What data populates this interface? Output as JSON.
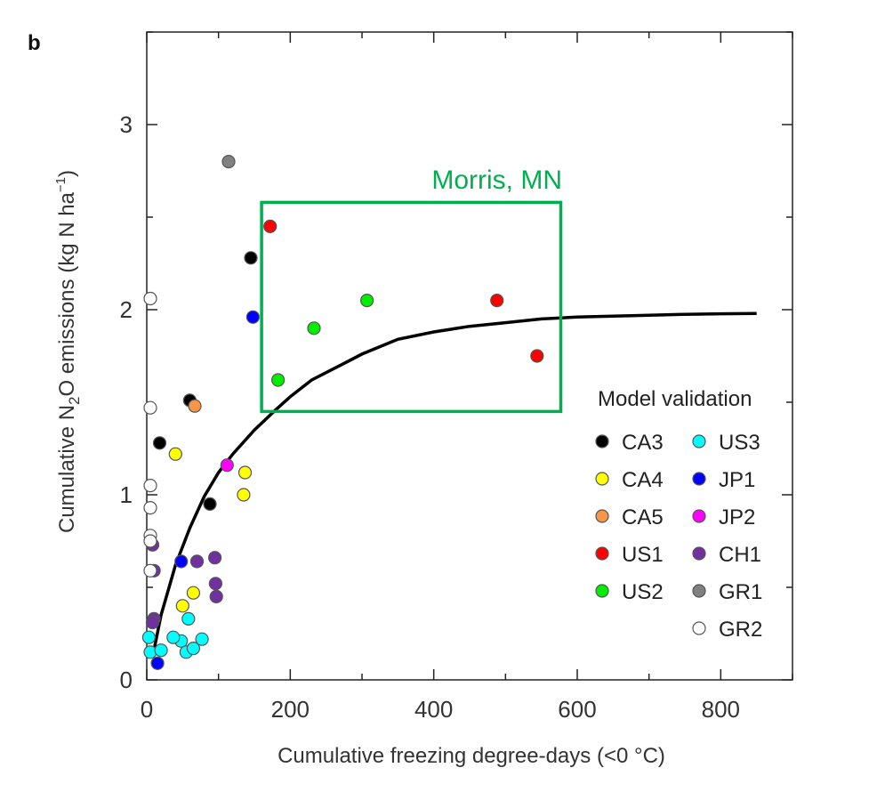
{
  "panel_label": "b",
  "chart_data": {
    "type": "scatter",
    "xlabel": "Cumulative freezing degree-days (<0 °C)",
    "ylabel": "Cumulative N2O emissions (kg N ha−1)",
    "xlim": [
      0,
      900
    ],
    "ylim": [
      0,
      3.5
    ],
    "x_ticks": [
      0,
      200,
      400,
      600,
      800
    ],
    "y_ticks": [
      0,
      1,
      2,
      3
    ],
    "x_tick_labels": [
      "0",
      "200",
      "400",
      "600",
      "800"
    ],
    "y_tick_labels": [
      "0",
      "1",
      "2",
      "3"
    ],
    "grid": false,
    "legend_title": "Model validation",
    "legend_position": "bottom-right",
    "series": [
      {
        "name": "CA3",
        "color": "#000000",
        "points": [
          [
            18,
            1.28
          ],
          [
            60,
            1.51
          ],
          [
            88,
            0.95
          ],
          [
            145,
            2.28
          ]
        ]
      },
      {
        "name": "CA4",
        "color": "#ffff00",
        "points": [
          [
            40,
            1.22
          ],
          [
            50,
            0.4
          ],
          [
            65,
            0.47
          ],
          [
            135,
            1.0
          ],
          [
            137,
            1.12
          ]
        ]
      },
      {
        "name": "CA5",
        "color": "#f79646",
        "points": [
          [
            67,
            1.48
          ]
        ]
      },
      {
        "name": "US1",
        "color": "#ff0000",
        "points": [
          [
            172,
            2.45
          ],
          [
            488,
            2.05
          ],
          [
            544,
            1.75
          ]
        ]
      },
      {
        "name": "US2",
        "color": "#00ee00",
        "points": [
          [
            183,
            1.62
          ],
          [
            233,
            1.9
          ],
          [
            307,
            2.05
          ]
        ]
      },
      {
        "name": "US3",
        "color": "#00ffff",
        "points": [
          [
            3,
            0.23
          ],
          [
            5,
            0.15
          ],
          [
            20,
            0.16
          ],
          [
            48,
            0.21
          ],
          [
            58,
            0.33
          ],
          [
            55,
            0.15
          ],
          [
            65,
            0.17
          ],
          [
            77,
            0.22
          ],
          [
            37,
            0.23
          ]
        ]
      },
      {
        "name": "JP1",
        "color": "#0000ff",
        "points": [
          [
            15,
            0.09
          ],
          [
            48,
            0.64
          ],
          [
            148,
            1.96
          ]
        ]
      },
      {
        "name": "JP2",
        "color": "#ff00ff",
        "points": [
          [
            112,
            1.16
          ]
        ]
      },
      {
        "name": "CH1",
        "color": "#7030a0",
        "points": [
          [
            8,
            0.73
          ],
          [
            10,
            0.59
          ],
          [
            10,
            0.33
          ],
          [
            8,
            0.31
          ],
          [
            70,
            0.64
          ],
          [
            95,
            0.66
          ],
          [
            96,
            0.52
          ],
          [
            97,
            0.45
          ]
        ]
      },
      {
        "name": "GR1",
        "color": "#808080",
        "points": [
          [
            114,
            2.8
          ]
        ]
      },
      {
        "name": "GR2",
        "color": "#ffffff",
        "points": [
          [
            5,
            2.06
          ],
          [
            5,
            1.47
          ],
          [
            5,
            1.05
          ],
          [
            5,
            0.93
          ],
          [
            5,
            0.78
          ],
          [
            5,
            0.75
          ],
          [
            5,
            0.59
          ]
        ]
      }
    ],
    "fit_curve": {
      "x": [
        10,
        20,
        40,
        60,
        80,
        100,
        120,
        150,
        180,
        200,
        230,
        260,
        300,
        350,
        400,
        450,
        500,
        550,
        600,
        650,
        700,
        750,
        800,
        850
      ],
      "y": [
        0.16,
        0.35,
        0.62,
        0.82,
        0.99,
        1.12,
        1.22,
        1.35,
        1.46,
        1.53,
        1.62,
        1.68,
        1.76,
        1.84,
        1.88,
        1.91,
        1.93,
        1.95,
        1.96,
        1.965,
        1.97,
        1.975,
        1.978,
        1.98
      ],
      "color": "#000000"
    },
    "annotation": {
      "text": "Morris, MN",
      "color": "#00b050",
      "box_x": [
        160,
        577
      ],
      "box_y": [
        1.45,
        2.58
      ]
    }
  }
}
